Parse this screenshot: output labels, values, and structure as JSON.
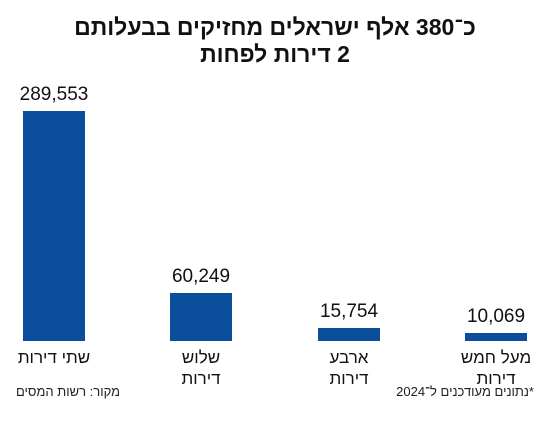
{
  "chart_data": {
    "type": "bar",
    "title": [
      "כ־380 אלף ישראלים מחזיקים בבעלותם",
      "2 דירות לפחות"
    ],
    "categories": [
      "שתי דירות",
      "שלוש דירות",
      "ארבע דירות",
      "מעל חמש דירות"
    ],
    "values": [
      289553,
      60249,
      15754,
      10069
    ],
    "value_labels": [
      "289,553",
      "60,249",
      "15,754",
      "10,069"
    ],
    "color": "#0b4f9c",
    "source": "מקור: רשות המסים",
    "note": "*נתונים מעודכנים ל־2024"
  }
}
